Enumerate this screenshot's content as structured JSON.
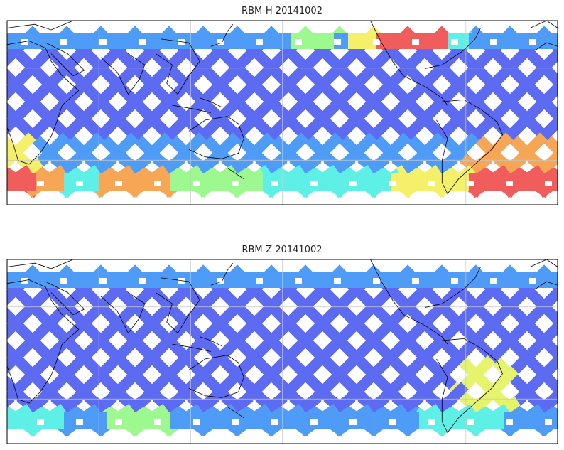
{
  "panels": [
    {
      "title": "RBM-H 20141002",
      "colors": {
        "base": "#5d6af2",
        "mid": "#4f9cf8",
        "cyan": "#5ef0e6",
        "green": "#9df890",
        "yellow": "#f5f06a",
        "orange": "#f7a655",
        "red": "#f15c5c"
      },
      "land_outline": "#000000",
      "grid": true
    },
    {
      "title": "RBM-Z 20141002",
      "colors": {
        "base": "#5d6af2",
        "mid": "#4f9cf8",
        "cyan": "#5ef0e6",
        "green": "#9df890",
        "yellow": "#e6f46c"
      },
      "land_outline": "#000000",
      "grid": true
    }
  ]
}
